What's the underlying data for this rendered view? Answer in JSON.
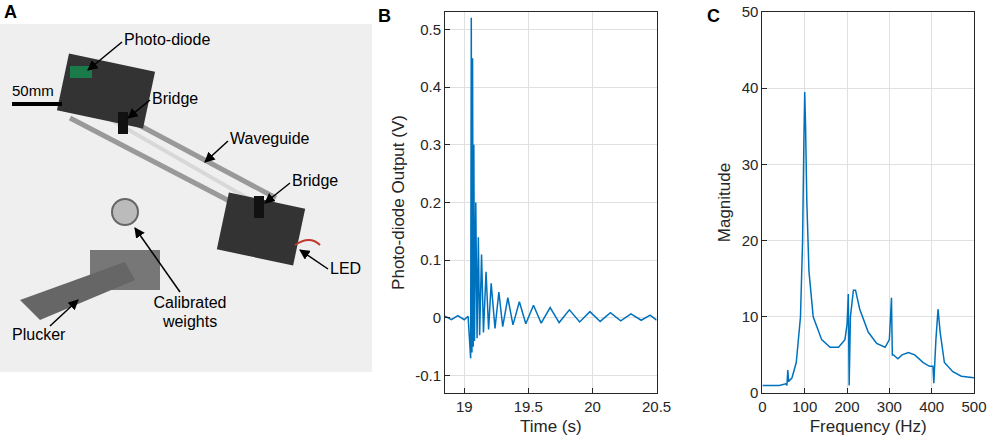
{
  "photo": {
    "panel": "A",
    "scale_bar": "50mm",
    "labels": [
      "Photo-diode",
      "Bridge",
      "Waveguide",
      "Bridge",
      "LED",
      "Plucker",
      "Calibrated weights"
    ]
  },
  "chart_data": [
    {
      "panel": "B",
      "type": "line",
      "x_label": "Time (s)",
      "y_label": "Photo-diode Output (V)",
      "color": "#0072bd",
      "x": [
        18.85,
        18.9,
        18.95,
        19.0,
        19.03,
        19.05,
        19.055,
        19.06,
        19.065,
        19.07,
        19.075,
        19.08,
        19.09,
        19.1,
        19.11,
        19.12,
        19.135,
        19.15,
        19.17,
        19.19,
        19.21,
        19.24,
        19.27,
        19.3,
        19.34,
        19.38,
        19.43,
        19.48,
        19.54,
        19.6,
        19.67,
        19.74,
        19.82,
        19.9,
        19.98,
        20.06,
        20.14,
        20.22,
        20.3,
        20.38,
        20.45,
        20.5
      ],
      "values": [
        0.003,
        -0.003,
        0.004,
        -0.003,
        0.003,
        -0.07,
        0.52,
        -0.06,
        0.45,
        -0.05,
        0.3,
        -0.04,
        0.2,
        -0.035,
        0.14,
        -0.03,
        0.11,
        -0.025,
        0.08,
        -0.02,
        0.06,
        -0.018,
        0.045,
        -0.015,
        0.035,
        -0.012,
        0.028,
        -0.01,
        0.022,
        -0.009,
        0.018,
        -0.008,
        0.014,
        -0.007,
        0.011,
        -0.006,
        0.009,
        -0.005,
        0.007,
        -0.004,
        0.005,
        -0.004
      ],
      "xlim": [
        18.85,
        20.5
      ],
      "xticks": [
        19,
        19.5,
        20,
        20.5
      ],
      "ylim": [
        -0.13,
        0.53
      ],
      "yticks": [
        -0.1,
        0,
        0.1,
        0.2,
        0.3,
        0.4,
        0.5
      ],
      "grid": true
    },
    {
      "panel": "C",
      "type": "line",
      "x_label": "Frequency (Hz)",
      "y_label": "Magnitude",
      "color": "#0072bd",
      "x": [
        0,
        20,
        40,
        55,
        58,
        60,
        62,
        70,
        80,
        90,
        95,
        98,
        100,
        102,
        105,
        110,
        120,
        140,
        160,
        180,
        195,
        200,
        203,
        205,
        208,
        215,
        220,
        230,
        250,
        270,
        290,
        300,
        305,
        307,
        310,
        320,
        330,
        345,
        360,
        380,
        395,
        403,
        405,
        410,
        415,
        420,
        430,
        450,
        470,
        500
      ],
      "values": [
        1,
        1,
        1,
        1.2,
        1,
        3,
        1.5,
        2,
        4,
        10,
        20,
        33,
        39.5,
        35,
        25,
        16,
        10,
        7,
        6,
        6,
        7,
        9,
        13,
        1,
        10,
        13.5,
        13.5,
        11,
        8,
        6.5,
        6,
        7,
        12.5,
        5,
        5,
        4.5,
        5,
        5.3,
        5,
        4,
        3.5,
        3.5,
        1.3,
        7,
        11,
        8,
        4,
        2.8,
        2.2,
        2
      ],
      "xlim": [
        0,
        500
      ],
      "xticks": [
        0,
        100,
        200,
        300,
        400,
        500
      ],
      "ylim": [
        0,
        50
      ],
      "yticks": [
        0,
        10,
        20,
        30,
        40,
        50
      ],
      "grid": true
    }
  ]
}
